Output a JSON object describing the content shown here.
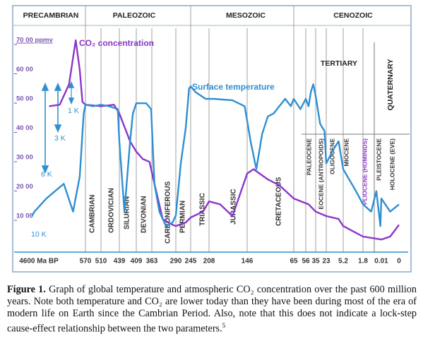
{
  "chart_data": {
    "type": "line",
    "xticks": [
      {
        "value": 4600,
        "label": "4600 Ma BP"
      },
      570,
      510,
      439,
      409,
      363,
      290,
      245,
      208,
      146,
      65,
      56,
      35,
      23,
      5.2,
      1.8,
      0.01,
      0
    ],
    "yticks": [
      {
        "value": 1000,
        "label": "10 00"
      },
      {
        "value": 2000,
        "label": "20 00"
      },
      {
        "value": 3000,
        "label": "30 00"
      },
      {
        "value": 4000,
        "label": "40 00"
      },
      {
        "value": 5000,
        "label": "50 00"
      },
      {
        "value": 6000,
        "label": "60 00"
      },
      {
        "value": 7000,
        "label": "70 00 ppmv"
      }
    ],
    "ylim": [
      -230,
      7410
    ],
    "series": [
      {
        "name": "CO₂ concentration",
        "color": "#8b36c9",
        "x": [
          3300,
          2500,
          1800,
          1300,
          1000,
          800,
          570,
          510,
          460,
          439,
          420,
          409,
          390,
          370,
          355,
          330,
          300,
          290,
          260,
          245,
          220,
          208,
          190,
          170,
          160,
          146,
          135,
          110,
          90,
          65,
          50,
          35,
          23,
          10,
          5.2,
          1.8,
          0.01,
          0.005,
          0
        ],
        "values": [
          4750,
          4800,
          5500,
          7000,
          6000,
          4900,
          4800,
          4750,
          4800,
          4500,
          3550,
          3200,
          2950,
          2850,
          2100,
          900,
          700,
          660,
          780,
          950,
          1150,
          1500,
          1400,
          1000,
          1600,
          2450,
          2600,
          2250,
          2050,
          1600,
          1400,
          1150,
          1000,
          900,
          660,
          300,
          200,
          300,
          700
        ]
      },
      {
        "name": "Surface temperature",
        "color": "#2f8fd2",
        "x": [
          4600,
          4400,
          3500,
          2200,
          1500,
          1000,
          700,
          570,
          540,
          510,
          480,
          445,
          439,
          430,
          420,
          415,
          409,
          380,
          365,
          355,
          340,
          320,
          300,
          290,
          275,
          260,
          250,
          245,
          235,
          215,
          200,
          170,
          150,
          140,
          130,
          120,
          110,
          100,
          90,
          80,
          70,
          65,
          60,
          56,
          50,
          45,
          40,
          35,
          30,
          25,
          23,
          15,
          10,
          5.2,
          3,
          1.8,
          1,
          0.5,
          0.1,
          0.01,
          0.005,
          0
        ],
        "values": [
          1000,
          1150,
          1600,
          2100,
          1150,
          2350,
          4500,
          4800,
          4750,
          4800,
          4750,
          4650,
          3550,
          1150,
          3550,
          4500,
          4850,
          4850,
          4650,
          2100,
          1150,
          660,
          780,
          1020,
          2800,
          4000,
          5350,
          5430,
          5230,
          5000,
          5000,
          4950,
          4750,
          3550,
          2600,
          3800,
          4400,
          4500,
          4750,
          5000,
          4750,
          5000,
          4650,
          5000,
          4750,
          5250,
          5500,
          5100,
          4150,
          3900,
          2800,
          3300,
          3550,
          2600,
          1850,
          1400,
          1150,
          1850,
          660,
          1600,
          1150,
          1400
        ]
      }
    ],
    "eras": [
      "PRECAMBRIAN",
      "PALEOZOIC",
      "MESOZOIC",
      "CENOZOIC"
    ],
    "periods": [
      "CAMBRIAN",
      "ORDOVICIAN",
      "SILURIAN",
      "DEVONIAN",
      "CARBONIFEROUS",
      "PERMIAN",
      "TRIASSIC",
      "JURASSIC",
      "CRETACEOUS"
    ],
    "subdivisions": [
      "TERTIARY",
      "QUATERNARY"
    ],
    "epochs": [
      "PALEOCENE",
      "EOCENE (ANTROPOIDS)",
      "OLIGOCENE",
      "MIOCENE",
      "PLIOCENE (HOMINIDS)",
      "PLEISTOCENE",
      "HOLOCENE (EVE)"
    ],
    "annotations": [
      "1 K",
      "3 K",
      "6 K",
      "10 K"
    ]
  },
  "caption": {
    "label": "Figure 1.",
    "text": "Graph of global temperature and atmospheric CO₂ concentration over the past 600 million years. Note both temperature and CO₂ are lower today than they have been during most of the era of modern life on Earth since the Cambrian Period. Also, note that this does not indicate a lock-step cause-effect relationship between the two parameters.",
    "footnote": "5"
  }
}
